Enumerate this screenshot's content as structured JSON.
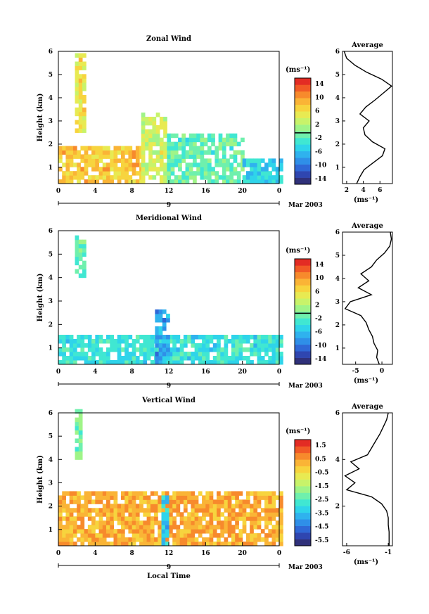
{
  "x_axis_label": "Local Time",
  "day_label": "9",
  "month_label": "Mar 2003",
  "unit_label": "(ms⁻¹)",
  "average_title": "Average",
  "chart_data": [
    {
      "type": "heatmap",
      "title": "Zonal Wind",
      "xlabel": "",
      "ylabel": "Height (km)",
      "xlim": [
        0,
        24
      ],
      "ylim": [
        0.3,
        6
      ],
      "x_ticks": [
        "0",
        "4",
        "8",
        "12",
        "16",
        "20",
        "0"
      ],
      "y_ticks": [
        "1",
        "2",
        "3",
        "4",
        "5",
        "6"
      ],
      "colorbar": {
        "label": "(ms⁻¹)",
        "range": [
          -15,
          16
        ],
        "ticks": [
          "14",
          "10",
          "6",
          "2",
          "-2",
          "-6",
          "-10",
          "-14"
        ],
        "zero_line": 0
      },
      "regions": [
        {
          "x": [
            1.8,
            2.7
          ],
          "y": [
            2.5,
            5.8
          ],
          "value": 6
        },
        {
          "x": [
            0,
            9
          ],
          "y": [
            0.3,
            1.8
          ],
          "value": 8
        },
        {
          "x": [
            9,
            11.8
          ],
          "y": [
            0.3,
            3.2
          ],
          "value": 4
        },
        {
          "x": [
            11.8,
            20
          ],
          "y": [
            0.3,
            2.4
          ],
          "value": -1
        },
        {
          "x": [
            20,
            24
          ],
          "y": [
            0.3,
            1.2
          ],
          "value": -4
        }
      ],
      "profile": {
        "title": "Average",
        "xlabel": "(ms⁻¹)",
        "xlim": [
          1.5,
          7.5
        ],
        "x_ticks": [
          "2",
          "4",
          "6"
        ],
        "y_ticks": [
          "1",
          "2",
          "3",
          "4",
          "5",
          "6"
        ],
        "height": [
          0.3,
          0.6,
          0.9,
          1.2,
          1.5,
          1.8,
          2.1,
          2.4,
          2.7,
          3.0,
          3.3,
          3.6,
          3.9,
          4.2,
          4.5,
          4.8,
          5.1,
          5.4,
          5.7,
          6.0
        ],
        "value": [
          3.2,
          3.6,
          4.1,
          5.2,
          6.3,
          6.6,
          5.1,
          4.2,
          4.0,
          4.7,
          3.6,
          4.3,
          5.4,
          6.4,
          7.4,
          6.2,
          4.4,
          3.0,
          2.0,
          1.7
        ]
      }
    },
    {
      "type": "heatmap",
      "title": "Meridional Wind",
      "xlabel": "",
      "ylabel": "Height (km)",
      "xlim": [
        0,
        24
      ],
      "ylim": [
        0.3,
        6
      ],
      "x_ticks": [
        "0",
        "4",
        "8",
        "12",
        "16",
        "20",
        "0"
      ],
      "y_ticks": [
        "1",
        "2",
        "3",
        "4",
        "5",
        "6"
      ],
      "colorbar": {
        "label": "(ms⁻¹)",
        "range": [
          -15,
          16
        ],
        "ticks": [
          "14",
          "10",
          "6",
          "2",
          "-2",
          "-6",
          "-10",
          "-14"
        ],
        "zero_line": 0
      },
      "regions": [
        {
          "x": [
            1.8,
            2.7
          ],
          "y": [
            4.0,
            5.7
          ],
          "value": -1
        },
        {
          "x": [
            0,
            24
          ],
          "y": [
            0.3,
            1.4
          ],
          "value": -3
        },
        {
          "x": [
            10.5,
            12
          ],
          "y": [
            0.3,
            2.5
          ],
          "value": -7
        }
      ],
      "profile": {
        "title": "Average",
        "xlabel": "(ms⁻¹)",
        "xlim": [
          -7.5,
          2
        ],
        "x_ticks": [
          "-5",
          "0"
        ],
        "y_ticks": [
          "1",
          "2",
          "3",
          "4",
          "5",
          "6"
        ],
        "height": [
          0.3,
          0.6,
          0.9,
          1.2,
          1.5,
          1.8,
          2.1,
          2.4,
          2.7,
          3.0,
          3.3,
          3.6,
          3.9,
          4.2,
          4.5,
          4.8,
          5.1,
          5.4,
          5.7,
          6.0
        ],
        "value": [
          -0.5,
          -1.0,
          -0.8,
          -1.5,
          -1.8,
          -2.5,
          -3.0,
          -4.0,
          -7.0,
          -6.0,
          -2.0,
          -4.5,
          -2.5,
          -4.0,
          -2.0,
          -1.0,
          0.5,
          1.5,
          1.8,
          1.6
        ]
      }
    },
    {
      "type": "heatmap",
      "title": "Vertical Wind",
      "xlabel": "Local Time",
      "ylabel": "Height (km)",
      "xlim": [
        0,
        24
      ],
      "ylim": [
        0.3,
        6
      ],
      "x_ticks": [
        "0",
        "4",
        "8",
        "12",
        "16",
        "20",
        "0"
      ],
      "y_ticks": [
        "1",
        "2",
        "3",
        "4",
        "5",
        "6"
      ],
      "colorbar": {
        "label": "(ms⁻¹)",
        "range": [
          -6,
          2
        ],
        "ticks": [
          "1.5",
          "0.5",
          "-0.5",
          "-1.5",
          "-2.5",
          "-3.5",
          "-4.5",
          "-5.5"
        ]
      },
      "regions": [
        {
          "x": [
            1.8,
            2.6
          ],
          "y": [
            4.0,
            6.0
          ],
          "value": -2
        },
        {
          "x": [
            0,
            24
          ],
          "y": [
            0.3,
            2.6
          ],
          "value": 0.3
        },
        {
          "x": [
            11.2,
            11.7
          ],
          "y": [
            0.3,
            2.4
          ],
          "value": -3.5
        }
      ],
      "profile": {
        "title": "Average",
        "xlabel": "(ms⁻¹)",
        "xlim": [
          -6.5,
          -0.5
        ],
        "x_ticks": [
          "-6",
          "-1"
        ],
        "y_ticks": [
          "2",
          "4",
          "6"
        ],
        "height": [
          0.3,
          0.6,
          0.9,
          1.2,
          1.5,
          1.8,
          2.1,
          2.4,
          2.7,
          3.0,
          3.3,
          3.6,
          3.9,
          4.2,
          4.5,
          4.8,
          5.1,
          5.4,
          5.7,
          6.0
        ],
        "value": [
          -0.9,
          -0.9,
          -0.9,
          -1.0,
          -1.0,
          -1.2,
          -1.8,
          -3.0,
          -6.0,
          -5.0,
          -6.2,
          -4.5,
          -5.5,
          -3.5,
          -3.0,
          -2.5,
          -2.0,
          -1.6,
          -1.2,
          -1.0
        ]
      }
    }
  ]
}
